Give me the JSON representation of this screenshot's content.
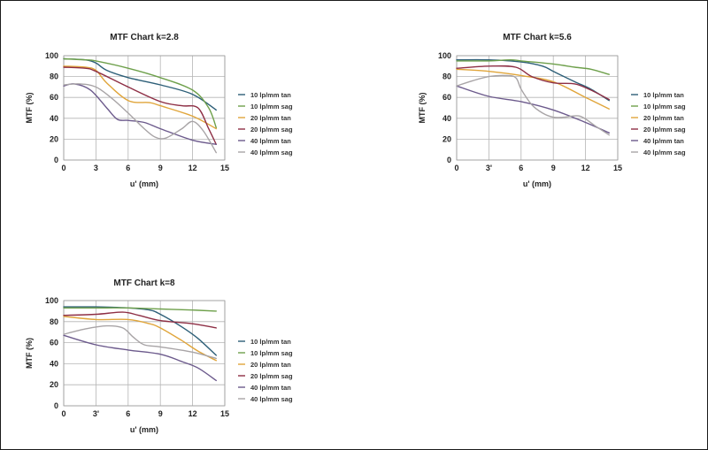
{
  "chart_data": [
    {
      "type": "line",
      "title": "MTF Chart k=2.8",
      "xlabel": "u' (mm)",
      "ylabel": "MTF (%)",
      "xlim": [
        0,
        15
      ],
      "ylim": [
        0,
        100
      ],
      "xticks": [
        0,
        3,
        6,
        9,
        12,
        15
      ],
      "xtick_labels": [
        "0",
        "3",
        "6",
        "9",
        "12",
        "15"
      ],
      "yticks": [
        0,
        20,
        40,
        60,
        80,
        100
      ],
      "ytick_labels": [
        "0",
        "20",
        "40",
        "60",
        "80",
        "100"
      ],
      "grid": true,
      "legend": "right",
      "series": [
        {
          "name": "10 lp/mm tan",
          "color": "#2d5f78",
          "x": [
            0,
            2,
            3,
            4,
            6,
            9,
            12,
            14.2
          ],
          "y": [
            97,
            96,
            93,
            86,
            79,
            72,
            63,
            48
          ]
        },
        {
          "name": "10 lp/mm sag",
          "color": "#6ea04b",
          "x": [
            0,
            2,
            3,
            6,
            9,
            12,
            13.5,
            14.2
          ],
          "y": [
            97,
            96,
            95,
            88,
            79,
            67,
            50,
            31
          ]
        },
        {
          "name": "20 lp/mm tan",
          "color": "#e0a53a",
          "x": [
            0,
            2,
            3,
            4,
            6,
            8,
            9,
            12,
            14.2
          ],
          "y": [
            90,
            89,
            86,
            74,
            57,
            55,
            52,
            42,
            30
          ]
        },
        {
          "name": "20 lp/mm sag",
          "color": "#8e2f45",
          "x": [
            0,
            2,
            3,
            6,
            9,
            11,
            12.5,
            13.5,
            14.2
          ],
          "y": [
            89,
            88,
            85,
            70,
            56,
            52,
            50,
            30,
            15
          ]
        },
        {
          "name": "40 lp/mm tan",
          "color": "#6c5a8c",
          "x": [
            0,
            1,
            2.5,
            4,
            5,
            6,
            7.5,
            9,
            12,
            14.2
          ],
          "y": [
            71,
            73,
            67,
            50,
            39,
            38,
            36,
            30,
            19,
            15
          ]
        },
        {
          "name": "40 lp/mm sag",
          "color": "#a8a4a6",
          "x": [
            0,
            1.5,
            3,
            4.5,
            6,
            7.5,
            8.5,
            9.5,
            11,
            12,
            13,
            14.2
          ],
          "y": [
            72,
            73,
            70,
            59,
            45,
            30,
            22,
            21,
            30,
            37,
            28,
            7
          ]
        }
      ]
    },
    {
      "type": "line",
      "title": "MTF Chart k=5.6",
      "xlabel": "u' (mm)",
      "ylabel": "MTF (%)",
      "xlim": [
        0,
        15
      ],
      "ylim": [
        0,
        100
      ],
      "xticks": [
        0,
        3,
        6,
        9,
        12,
        15
      ],
      "xtick_labels": [
        "0",
        "3'",
        "6",
        "9",
        "12",
        "15"
      ],
      "yticks": [
        0,
        20,
        40,
        60,
        80,
        100
      ],
      "ytick_labels": [
        "0",
        "20",
        "40",
        "60",
        "80",
        "100"
      ],
      "grid": true,
      "legend": "right",
      "series": [
        {
          "name": "10 lp/mm tan",
          "color": "#2d5f78",
          "x": [
            0,
            3,
            6,
            8,
            9,
            11,
            12.5,
            14.2
          ],
          "y": [
            96,
            96,
            94,
            90,
            85,
            75,
            68,
            57
          ]
        },
        {
          "name": "10 lp/mm sag",
          "color": "#6ea04b",
          "x": [
            0,
            3,
            5,
            6,
            9,
            11,
            12.5,
            14.2
          ],
          "y": [
            95,
            95,
            96,
            95,
            92,
            89,
            87,
            82
          ]
        },
        {
          "name": "20 lp/mm tan",
          "color": "#e0a53a",
          "x": [
            0,
            3,
            6,
            9,
            12,
            14.2
          ],
          "y": [
            87,
            85,
            81,
            75,
            60,
            49
          ]
        },
        {
          "name": "20 lp/mm sag",
          "color": "#8e2f45",
          "x": [
            0,
            3,
            5.5,
            7,
            9,
            11,
            12.5,
            14.2
          ],
          "y": [
            88,
            90,
            89,
            80,
            74,
            73,
            67,
            58
          ]
        },
        {
          "name": "40 lp/mm tan",
          "color": "#6c5a8c",
          "x": [
            0,
            3,
            6,
            9,
            12,
            14.2
          ],
          "y": [
            71,
            61,
            56,
            48,
            36,
            26
          ]
        },
        {
          "name": "40 lp/mm sag",
          "color": "#a8a4a6",
          "x": [
            0,
            1.5,
            3,
            4.5,
            5.5,
            6,
            7,
            8,
            9,
            10,
            11.5,
            13,
            14.2
          ],
          "y": [
            71,
            76,
            80,
            81,
            79,
            68,
            53,
            45,
            41,
            41,
            42,
            32,
            24
          ]
        }
      ]
    },
    {
      "type": "line",
      "title": "MTF Chart k=8",
      "xlabel": "u' (mm)",
      "ylabel": "MTF (%)",
      "xlim": [
        0,
        15
      ],
      "ylim": [
        0,
        100
      ],
      "xticks": [
        0,
        3,
        6,
        9,
        12,
        15
      ],
      "xtick_labels": [
        "0",
        "3'",
        "6",
        "9",
        "12",
        "15"
      ],
      "yticks": [
        0,
        20,
        40,
        60,
        80,
        100
      ],
      "ytick_labels": [
        "0",
        "20",
        "40",
        "60",
        "80",
        "100"
      ],
      "grid": true,
      "legend": "right",
      "series": [
        {
          "name": "10 lp/mm tan",
          "color": "#2d5f78",
          "x": [
            0,
            3,
            6,
            8,
            9,
            11,
            12.5,
            14.2
          ],
          "y": [
            94,
            94,
            93,
            91,
            87,
            75,
            64,
            48
          ]
        },
        {
          "name": "10 lp/mm sag",
          "color": "#6ea04b",
          "x": [
            0,
            3,
            6,
            9,
            12,
            14.2
          ],
          "y": [
            93,
            93,
            93,
            92,
            91,
            90
          ]
        },
        {
          "name": "20 lp/mm tan",
          "color": "#e0a53a",
          "x": [
            0,
            3,
            6,
            8,
            9,
            11,
            12.5,
            14.2
          ],
          "y": [
            85,
            82,
            82,
            78,
            74,
            62,
            52,
            43
          ]
        },
        {
          "name": "20 lp/mm sag",
          "color": "#8e2f45",
          "x": [
            0,
            3,
            5.5,
            7,
            9,
            12,
            14.2
          ],
          "y": [
            86,
            87,
            89,
            86,
            81,
            78,
            74
          ]
        },
        {
          "name": "40 lp/mm tan",
          "color": "#6c5a8c",
          "x": [
            0,
            3,
            6,
            9,
            11,
            12.5,
            14.2
          ],
          "y": [
            67,
            58,
            53,
            49,
            42,
            36,
            24
          ]
        },
        {
          "name": "40 lp/mm sag",
          "color": "#a8a4a6",
          "x": [
            0,
            2,
            4,
            5.5,
            6.5,
            7.5,
            9,
            12,
            14.2
          ],
          "y": [
            68,
            73,
            76,
            74,
            65,
            58,
            56,
            51,
            45
          ]
        }
      ]
    }
  ]
}
